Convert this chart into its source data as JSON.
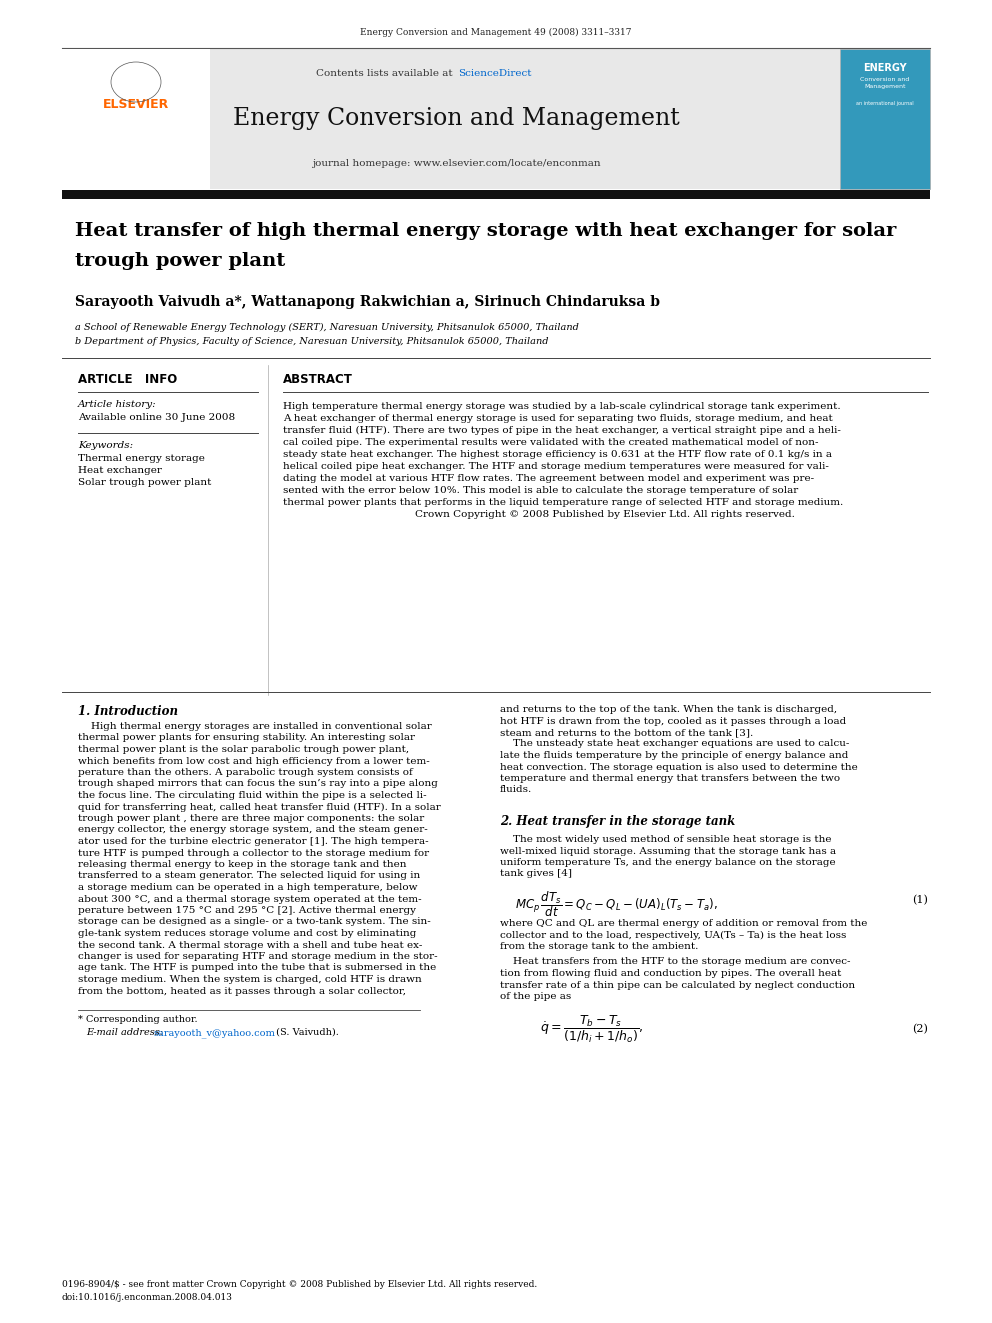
{
  "page_width": 9.92,
  "page_height": 13.23,
  "bg_color": "#ffffff",
  "journal_ref": "Energy Conversion and Management 49 (2008) 3311–3317",
  "sciencedirect_color": "#0066cc",
  "journal_title": "Energy Conversion and Management",
  "journal_homepage": "journal homepage: www.elsevier.com/locate/enconman",
  "thick_bar_color": "#1a1a1a",
  "header_bg": "#e8e8e8",
  "elsevier_color": "#FF6600",
  "article_title_line1": "Heat transfer of high thermal energy storage with heat exchanger for solar",
  "article_title_line2": "trough power plant",
  "authors_line": "Sarayooth Vaivudh a*, Wattanapong Rakwichian a, Sirinuch Chindaruksa b",
  "affil_a": "a School of Renewable Energy Technology (SERT), Naresuan University, Phitsanulok 65000, Thailand",
  "affil_b": "b Department of Physics, Faculty of Science, Naresuan University, Phitsanulok 65000, Thailand",
  "article_info_title": "ARTICLE   INFO",
  "abstract_title": "ABSTRACT",
  "article_history_label": "Article history:",
  "available_online": "Available online 30 June 2008",
  "keywords_label": "Keywords:",
  "keyword1": "Thermal energy storage",
  "keyword2": "Heat exchanger",
  "keyword3": "Solar trough power plant",
  "abstract_lines": [
    "High temperature thermal energy storage was studied by a lab-scale cylindrical storage tank experiment.",
    "A heat exchanger of thermal energy storage is used for separating two fluids, storage medium, and heat",
    "transfer fluid (HTF). There are two types of pipe in the heat exchanger, a vertical straight pipe and a heli-",
    "cal coiled pipe. The experimental results were validated with the created mathematical model of non-",
    "steady state heat exchanger. The highest storage efficiency is 0.631 at the HTF flow rate of 0.1 kg/s in a",
    "helical coiled pipe heat exchanger. The HTF and storage medium temperatures were measured for vali-",
    "dating the model at various HTF flow rates. The agreement between model and experiment was pre-",
    "sented with the error below 10%. This model is able to calculate the storage temperature of solar",
    "thermal power plants that performs in the liquid temperature range of selected HTF and storage medium.",
    "Crown Copyright © 2008 Published by Elsevier Ltd. All rights reserved."
  ],
  "abstract_last_line_center": true,
  "sec1_title": "1. Introduction",
  "sec1_col1_lines": [
    "    High thermal energy storages are installed in conventional solar",
    "thermal power plants for ensuring stability. An interesting solar",
    "thermal power plant is the solar parabolic trough power plant,",
    "which benefits from low cost and high efficiency from a lower tem-",
    "perature than the others. A parabolic trough system consists of",
    "trough shaped mirrors that can focus the sun’s ray into a pipe along",
    "the focus line. The circulating fluid within the pipe is a selected li-",
    "quid for transferring heat, called heat transfer fluid (HTF). In a solar",
    "trough power plant , there are three major components: the solar",
    "energy collector, the energy storage system, and the steam gener-",
    "ator used for the turbine electric generator [1]. The high tempera-",
    "ture HTF is pumped through a collector to the storage medium for",
    "releasing thermal energy to keep in the storage tank and then",
    "transferred to a steam generator. The selected liquid for using in",
    "a storage medium can be operated in a high temperature, below",
    "about 300 °C, and a thermal storage system operated at the tem-",
    "perature between 175 °C and 295 °C [2]. Active thermal energy",
    "storage can be designed as a single- or a two-tank system. The sin-",
    "gle-tank system reduces storage volume and cost by eliminating",
    "the second tank. A thermal storage with a shell and tube heat ex-",
    "changer is used for separating HTF and storage medium in the stor-",
    "age tank. The HTF is pumped into the tube that is submersed in the",
    "storage medium. When the system is charged, cold HTF is drawn",
    "from the bottom, heated as it passes through a solar collector,"
  ],
  "sec1_col2_lines": [
    "and returns to the top of the tank. When the tank is discharged,",
    "hot HTF is drawn from the top, cooled as it passes through a load",
    "steam and returns to the bottom of the tank [3].",
    "    The unsteady state heat exchanger equations are used to calcu-",
    "late the fluids temperature by the principle of energy balance and",
    "heat convection. The storage equation is also used to determine the",
    "temperature and thermal energy that transfers between the two",
    "fluids."
  ],
  "sec2_title": "2. Heat transfer in the storage tank",
  "sec2_col2_lines": [
    "    The most widely used method of sensible heat storage is the",
    "well-mixed liquid storage. Assuming that the storage tank has a",
    "uniform temperature Ts, and the energy balance on the storage",
    "tank gives [4]"
  ],
  "eq1_desc_lines": [
    "where QC and QL are thermal energy of addition or removal from the",
    "collector and to the load, respectively, UA(Ts – Ta) is the heat loss",
    "from the storage tank to the ambient."
  ],
  "eq2_intro_lines": [
    "    Heat transfers from the HTF to the storage medium are convec-",
    "tion from flowing fluid and conduction by pipes. The overall heat",
    "transfer rate of a thin pipe can be calculated by neglect conduction",
    "of the pipe as"
  ],
  "footnote_star": "* Corresponding author.",
  "footnote_email_label": "E-mail address:",
  "footnote_email": "sarayooth_v@yahoo.com",
  "footnote_name": "(S. Vaivudh).",
  "footer_left": "0196-8904/$ - see front matter Crown Copyright © 2008 Published by Elsevier Ltd. All rights reserved.",
  "footer_doi": "doi:10.1016/j.enconman.2008.04.013"
}
